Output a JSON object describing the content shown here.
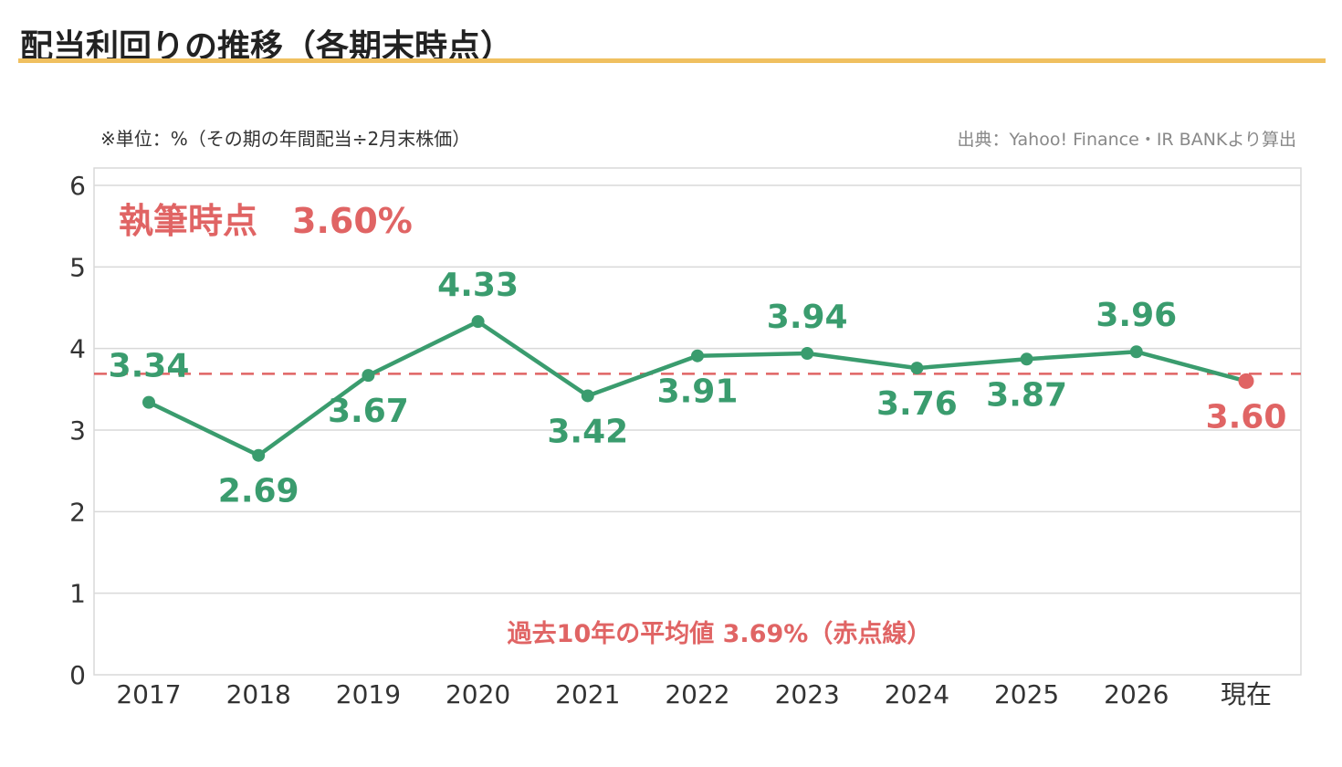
{
  "page": {
    "title": "配当利回りの推移（各期末時点）",
    "unit_note": "※単位：%（その期の年間配当÷2月末株価）",
    "source_note": "出典：Yahoo! Finance・IR BANKより算出"
  },
  "colors": {
    "accent_rule": "#f0c060",
    "series": "#3a9c6e",
    "current": "#e06464",
    "grid": "#d9d9d9"
  },
  "chart_data": {
    "type": "line",
    "categories": [
      "2017",
      "2018",
      "2019",
      "2020",
      "2021",
      "2022",
      "2023",
      "2024",
      "2025",
      "2026",
      "現在"
    ],
    "series": [
      {
        "values": [
          3.34,
          2.69,
          3.67,
          4.33,
          3.42,
          3.91,
          3.94,
          3.76,
          3.87,
          3.96,
          3.6
        ],
        "labels": [
          "3.34",
          "2.69",
          "3.67",
          "4.33",
          "3.42",
          "3.91",
          "3.94",
          "3.76",
          "3.87",
          "3.96",
          "3.60"
        ]
      }
    ],
    "highlight_last_point": true,
    "ylim": [
      0,
      6
    ],
    "yticks": [
      "0",
      "1",
      "2",
      "3",
      "4",
      "5",
      "6"
    ],
    "reference_line": {
      "value": 3.69,
      "style": "dashed"
    },
    "annotations": {
      "current": "執筆時点　3.60%",
      "average": "過去10年の平均値 3.69%（赤点線）"
    },
    "grid": true
  }
}
